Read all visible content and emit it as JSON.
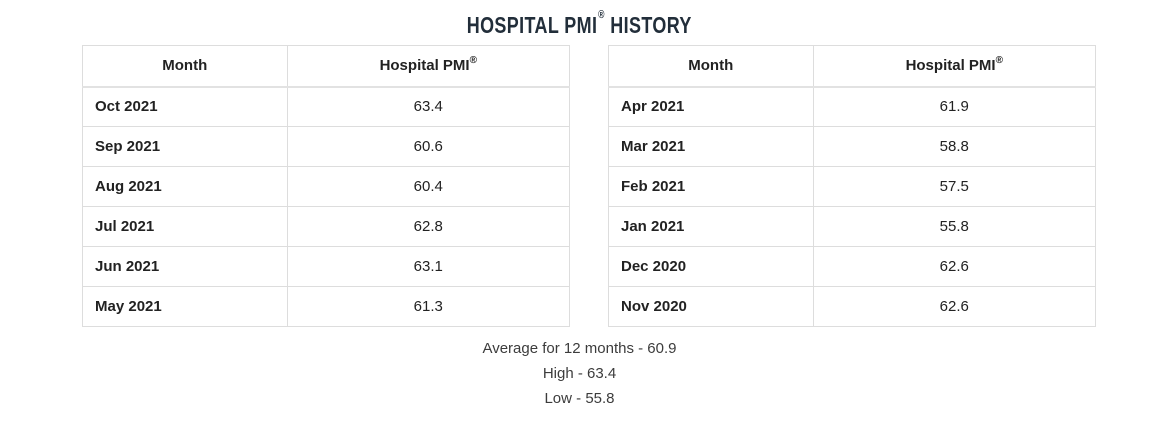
{
  "title": {
    "left": "HOSPITAL PMI",
    "reg": "®",
    "right": "HISTORY"
  },
  "tables": [
    {
      "headers": {
        "month": "Month",
        "pmi": "Hospital PMI",
        "reg": "®"
      },
      "rows": [
        {
          "month": "Oct 2021",
          "value": "63.4"
        },
        {
          "month": "Sep 2021",
          "value": "60.6"
        },
        {
          "month": "Aug 2021",
          "value": "60.4"
        },
        {
          "month": "Jul 2021",
          "value": "62.8"
        },
        {
          "month": "Jun 2021",
          "value": "63.1"
        },
        {
          "month": "May 2021",
          "value": "61.3"
        }
      ]
    },
    {
      "headers": {
        "month": "Month",
        "pmi": "Hospital PMI",
        "reg": "®"
      },
      "rows": [
        {
          "month": "Apr 2021",
          "value": "61.9"
        },
        {
          "month": "Mar 2021",
          "value": "58.8"
        },
        {
          "month": "Feb 2021",
          "value": "57.5"
        },
        {
          "month": "Jan 2021",
          "value": "55.8"
        },
        {
          "month": "Dec 2020",
          "value": "62.6"
        },
        {
          "month": "Nov 2020",
          "value": "62.6"
        }
      ]
    }
  ],
  "summary": {
    "average": "Average for 12 months - 60.9",
    "high": "High - 63.4",
    "low": "Low - 55.8"
  },
  "colors": {
    "title": "#222e3a",
    "header_text": "#222222",
    "month_text": "#222222",
    "value_text": "#444444",
    "summary_text": "#3c3c3c",
    "border": "#dddddd",
    "background": "#ffffff"
  },
  "chart_data": {
    "type": "table",
    "title": "HOSPITAL PMI® HISTORY",
    "columns": [
      "Month",
      "Hospital PMI®"
    ],
    "rows": [
      [
        "Oct 2021",
        63.4
      ],
      [
        "Sep 2021",
        60.6
      ],
      [
        "Aug 2021",
        60.4
      ],
      [
        "Jul 2021",
        62.8
      ],
      [
        "Jun 2021",
        63.1
      ],
      [
        "May 2021",
        61.3
      ],
      [
        "Apr 2021",
        61.9
      ],
      [
        "Mar 2021",
        58.8
      ],
      [
        "Feb 2021",
        57.5
      ],
      [
        "Jan 2021",
        55.8
      ],
      [
        "Dec 2020",
        62.6
      ],
      [
        "Nov 2020",
        62.6
      ]
    ],
    "average_for_12_months": 60.9,
    "high": 63.4,
    "low": 55.8,
    "layout": "two side-by-side tables of 6 rows each, summary stats centered below"
  }
}
